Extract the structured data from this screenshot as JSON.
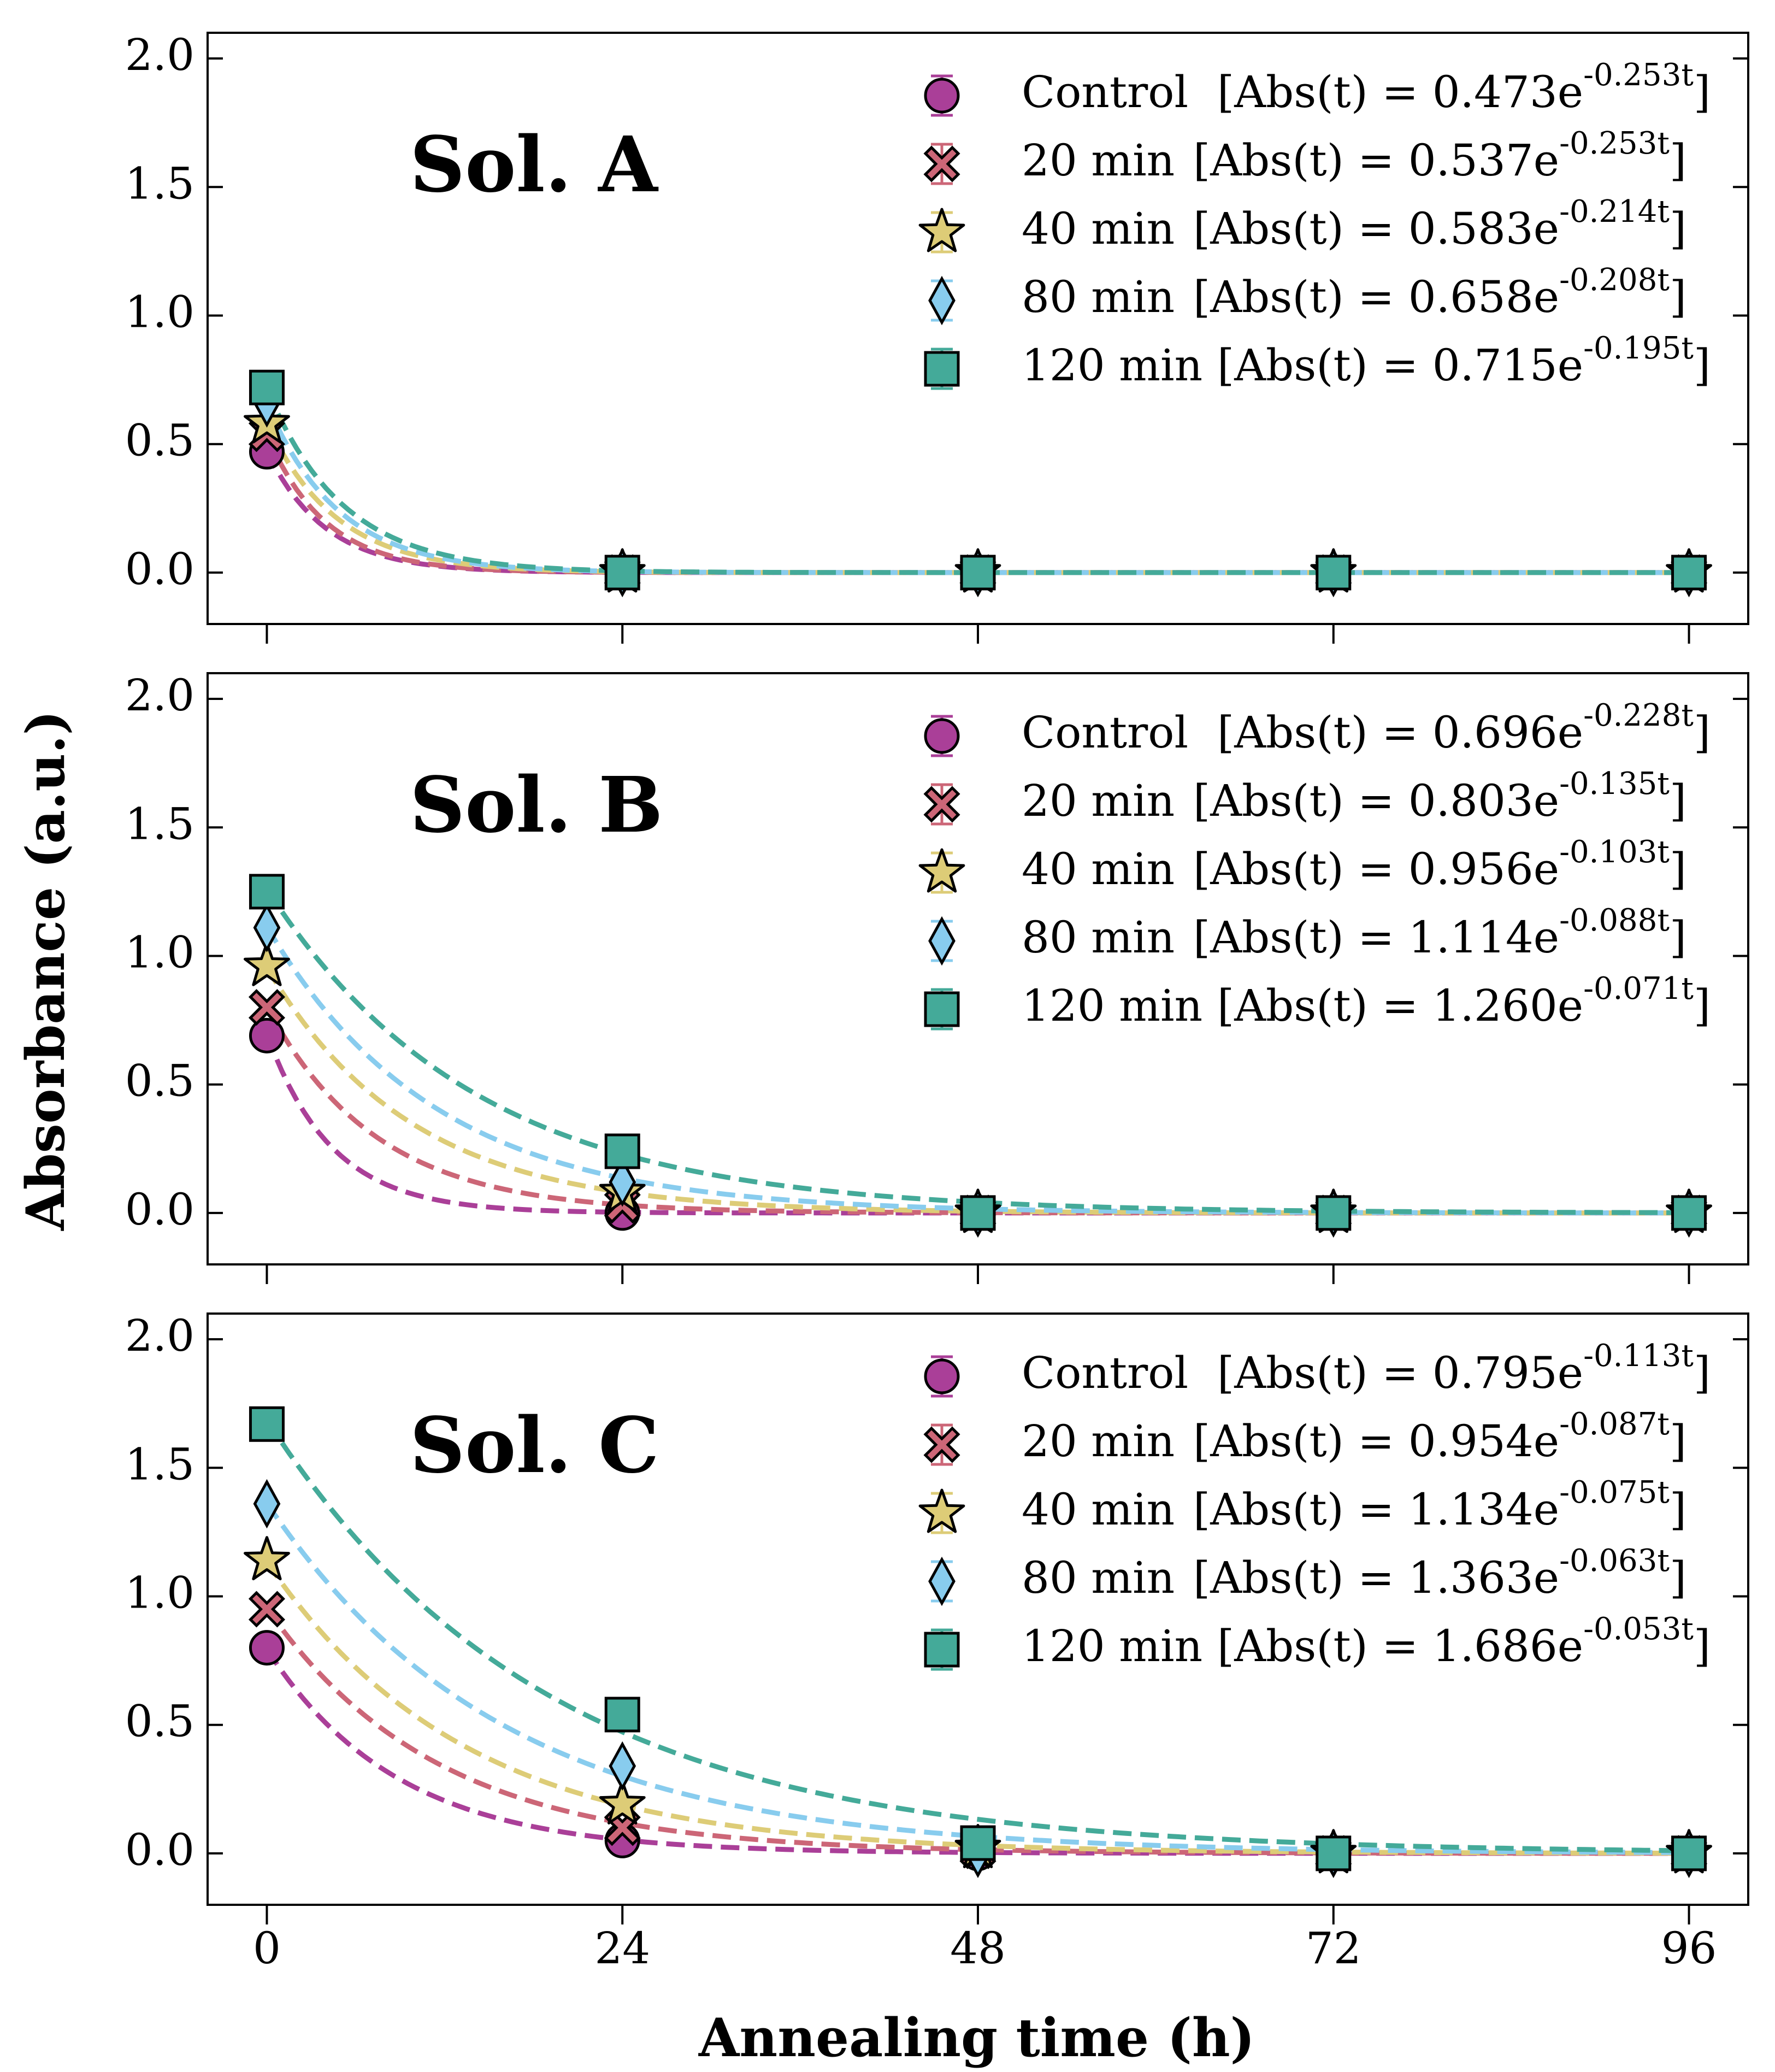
{
  "figure": {
    "xlabel": "Annealing time (h)",
    "ylabel": "Absorbance (a.u.)"
  },
  "chart_data": [
    {
      "type": "scatter",
      "title": "Sol. A",
      "x": [
        0,
        24,
        48,
        72,
        96
      ],
      "xlim": [
        -4,
        100
      ],
      "ylim": [
        -0.2,
        2.1
      ],
      "xticks": [
        "0",
        "24",
        "48",
        "72",
        "96"
      ],
      "yticks": [
        "0.0",
        "0.5",
        "1.0",
        "1.5",
        "2.0"
      ],
      "legend_position": "top-right",
      "series": [
        {
          "name": "Control",
          "values": [
            0.47,
            0.0,
            0.0,
            0.0,
            0.0
          ],
          "color": "#AA3F98",
          "marker": "circle",
          "fit": {
            "formula": "[Abs(t) = 0.473e^{-0.253t}]",
            "a": 0.473,
            "k": 0.253
          }
        },
        {
          "name": "20 min",
          "values": [
            0.54,
            0.0,
            0.0,
            0.0,
            0.0
          ],
          "color": "#CC6677",
          "marker": "x",
          "fit": {
            "formula": "[Abs(t) = 0.537e^{-0.253t}]",
            "a": 0.537,
            "k": 0.253
          }
        },
        {
          "name": "40 min",
          "values": [
            0.58,
            0.0,
            0.0,
            0.0,
            0.0
          ],
          "color": "#DDCC77",
          "marker": "star",
          "fit": {
            "formula": "[Abs(t) = 0.583e^{-0.214t}]",
            "a": 0.583,
            "k": 0.214
          }
        },
        {
          "name": "80 min",
          "values": [
            0.66,
            0.0,
            0.0,
            0.0,
            0.0
          ],
          "color": "#88CCEE",
          "marker": "diamond",
          "fit": {
            "formula": "[Abs(t) = 0.658e^{-0.208t}]",
            "a": 0.658,
            "k": 0.208
          }
        },
        {
          "name": "120 min",
          "values": [
            0.72,
            0.0,
            0.0,
            0.0,
            0.0
          ],
          "color": "#44AA99",
          "marker": "square",
          "fit": {
            "formula": "[Abs(t) = 0.715e^{-0.195t}]",
            "a": 0.715,
            "k": 0.195
          }
        }
      ]
    },
    {
      "type": "scatter",
      "title": "Sol. B",
      "x": [
        0,
        24,
        48,
        72,
        96
      ],
      "xlim": [
        -4,
        100
      ],
      "ylim": [
        -0.2,
        2.1
      ],
      "xticks": [
        "0",
        "24",
        "48",
        "72",
        "96"
      ],
      "yticks": [
        "0.0",
        "0.5",
        "1.0",
        "1.5",
        "2.0"
      ],
      "legend_position": "top-right",
      "series": [
        {
          "name": "Control",
          "values": [
            0.69,
            0.0,
            0.0,
            0.0,
            0.0
          ],
          "color": "#AA3F98",
          "marker": "circle",
          "fit": {
            "formula": "[Abs(t) = 0.696e^{-0.228t}]",
            "a": 0.696,
            "k": 0.228
          }
        },
        {
          "name": "20 min",
          "values": [
            0.8,
            0.03,
            0.0,
            0.0,
            0.0
          ],
          "color": "#CC6677",
          "marker": "x",
          "fit": {
            "formula": "[Abs(t) = 0.803e^{-0.135t}]",
            "a": 0.803,
            "k": 0.135
          }
        },
        {
          "name": "40 min",
          "values": [
            0.96,
            0.08,
            0.0,
            0.0,
            0.0
          ],
          "color": "#DDCC77",
          "marker": "star",
          "fit": {
            "formula": "[Abs(t) = 0.956e^{-0.103t}]",
            "a": 0.956,
            "k": 0.103
          }
        },
        {
          "name": "80 min",
          "values": [
            1.11,
            0.12,
            0.0,
            0.0,
            0.0
          ],
          "color": "#88CCEE",
          "marker": "diamond",
          "fit": {
            "formula": "[Abs(t) = 1.114e^{-0.088t}]",
            "a": 1.114,
            "k": 0.088
          }
        },
        {
          "name": "120 min",
          "values": [
            1.25,
            0.24,
            0.0,
            0.0,
            0.0
          ],
          "color": "#44AA99",
          "marker": "square",
          "fit": {
            "formula": "[Abs(t) = 1.260e^{-0.071t}]",
            "a": 1.26,
            "k": 0.071
          }
        }
      ]
    },
    {
      "type": "scatter",
      "title": "Sol. C",
      "x": [
        0,
        24,
        48,
        72,
        96
      ],
      "xlim": [
        -4,
        100
      ],
      "ylim": [
        -0.2,
        2.1
      ],
      "xticks": [
        "0",
        "24",
        "48",
        "72",
        "96"
      ],
      "yticks": [
        "0.0",
        "0.5",
        "1.0",
        "1.5",
        "2.0"
      ],
      "legend_position": "top-right",
      "series": [
        {
          "name": "Control",
          "values": [
            0.8,
            0.05,
            0.0,
            0.0,
            0.0
          ],
          "color": "#AA3F98",
          "marker": "circle",
          "fit": {
            "formula": "[Abs(t) = 0.795e^{-0.113t}]",
            "a": 0.795,
            "k": 0.113
          }
        },
        {
          "name": "20 min",
          "values": [
            0.95,
            0.1,
            0.01,
            0.0,
            0.0
          ],
          "color": "#CC6677",
          "marker": "x",
          "fit": {
            "formula": "[Abs(t) = 0.954e^{-0.087t}]",
            "a": 0.954,
            "k": 0.087
          }
        },
        {
          "name": "40 min",
          "values": [
            1.14,
            0.19,
            0.02,
            0.0,
            0.0
          ],
          "color": "#DDCC77",
          "marker": "star",
          "fit": {
            "formula": "[Abs(t) = 1.134e^{-0.075t}]",
            "a": 1.134,
            "k": 0.075
          }
        },
        {
          "name": "80 min",
          "values": [
            1.36,
            0.34,
            0.0,
            0.0,
            0.0
          ],
          "color": "#88CCEE",
          "marker": "diamond",
          "fit": {
            "formula": "[Abs(t) = 1.363e^{-0.063t}]",
            "a": 1.363,
            "k": 0.063
          }
        },
        {
          "name": "120 min",
          "values": [
            1.67,
            0.54,
            0.04,
            0.0,
            0.0
          ],
          "color": "#44AA99",
          "marker": "square",
          "fit": {
            "formula": "[Abs(t) = 1.686e^{-0.053t}]",
            "a": 1.686,
            "k": 0.053
          }
        }
      ]
    }
  ]
}
